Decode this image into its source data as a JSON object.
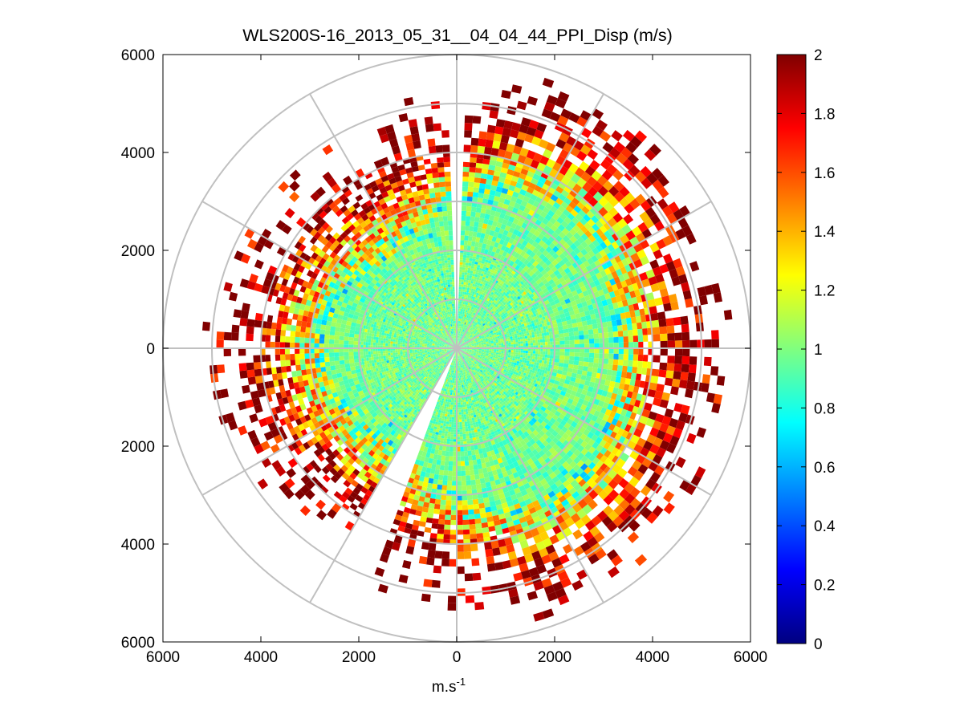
{
  "chart_data": {
    "type": "heatmap",
    "subtype": "polar-ppi",
    "title": "WLS200S-16_2013_05_31__04_04_44_PPI_Disp (m/s)",
    "xlabel_base": "m.s",
    "xlabel_exp": "-1",
    "ylabel": "",
    "xlim": [
      -6000,
      6000
    ],
    "ylim": [
      -6000,
      6000
    ],
    "x_ticks": [
      {
        "value": -6000,
        "label": "6000"
      },
      {
        "value": -4000,
        "label": "4000"
      },
      {
        "value": -2000,
        "label": "2000"
      },
      {
        "value": 0,
        "label": "0"
      },
      {
        "value": 2000,
        "label": "2000"
      },
      {
        "value": 4000,
        "label": "4000"
      },
      {
        "value": 6000,
        "label": "6000"
      }
    ],
    "y_ticks": [
      {
        "value": 6000,
        "label": "6000"
      },
      {
        "value": 4000,
        "label": "4000"
      },
      {
        "value": 2000,
        "label": "2000"
      },
      {
        "value": 0,
        "label": "0"
      },
      {
        "value": -2000,
        "label": "2000"
      },
      {
        "value": -4000,
        "label": "4000"
      },
      {
        "value": -6000,
        "label": "6000"
      }
    ],
    "range_rings_m": [
      1000,
      2000,
      3000,
      4000,
      5000,
      6000
    ],
    "spoke_angles_deg": [
      0,
      30,
      60,
      90,
      120,
      150,
      180,
      210,
      240,
      270,
      300,
      330
    ],
    "grid": true,
    "colorbar": {
      "colormap": "jet",
      "min": 0,
      "max": 2,
      "ticks": [
        {
          "value": 0,
          "label": "0"
        },
        {
          "value": 0.2,
          "label": "0.2"
        },
        {
          "value": 0.4,
          "label": "0.4"
        },
        {
          "value": 0.6,
          "label": "0.6"
        },
        {
          "value": 0.8,
          "label": "0.8"
        },
        {
          "value": 1,
          "label": "1"
        },
        {
          "value": 1.2,
          "label": "1.2"
        },
        {
          "value": 1.4,
          "label": "1.4"
        },
        {
          "value": 1.6,
          "label": "1.6"
        },
        {
          "value": 1.8,
          "label": "1.8"
        },
        {
          "value": 2,
          "label": "2"
        }
      ]
    },
    "data_summary": {
      "description": "Velocity dispersion field; low values (~0.8-1.0 m/s) near center, rising to >=2 m/s near the edge of the scan.",
      "gate_spacing_m": 50,
      "azimuth_step_deg": 2,
      "max_range_m": 5800,
      "near_range_value_ms": 0.95,
      "far_range_value_ms": 2,
      "no_data_sectors_deg": [
        [
          -2,
          2
        ],
        [
          200,
          209
        ]
      ]
    }
  },
  "colors": {
    "background": "#ffffff",
    "axis": "#000000",
    "grid": "#c0c0c0"
  }
}
